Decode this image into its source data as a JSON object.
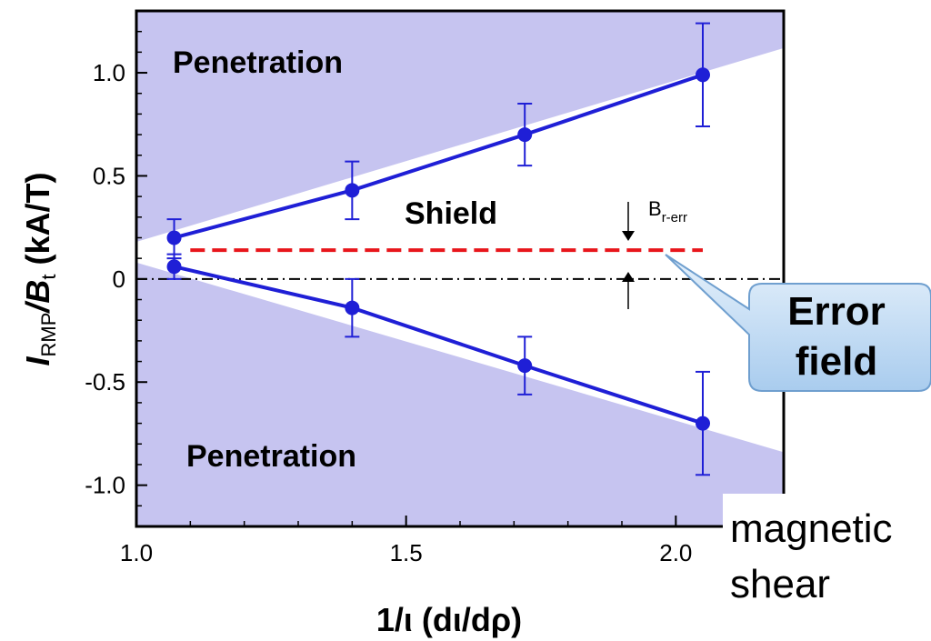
{
  "chart_data": {
    "type": "scatter",
    "xlabel": "1/ι (dι/dρ)",
    "ylabel_main": "I",
    "ylabel_sub": "RMP",
    "ylabel_mid": "/B",
    "ylabel_sub2": "t",
    "ylabel_unit": " (kA/T)",
    "xlim": [
      1.0,
      2.2
    ],
    "ylim": [
      -1.2,
      1.3
    ],
    "x_ticks": [
      {
        "value": 1.0,
        "label": "1.0"
      },
      {
        "value": 1.5,
        "label": "1.5"
      },
      {
        "value": 2.0,
        "label": "2.0"
      }
    ],
    "y_ticks": [
      {
        "value": 1.0,
        "label": "1.0"
      },
      {
        "value": 0.5,
        "label": "0.5"
      },
      {
        "value": 0.0,
        "label": "0"
      },
      {
        "value": -0.5,
        "label": "-0.5"
      },
      {
        "value": -1.0,
        "label": "-1.0"
      }
    ],
    "series": [
      {
        "color": "#1f1fd6",
        "x": [
          1.07,
          1.4,
          1.72,
          2.05
        ],
        "y": [
          0.2,
          0.43,
          0.7,
          0.99
        ],
        "err_low": [
          0.1,
          0.14,
          0.15,
          0.25
        ],
        "err_high": [
          0.09,
          0.14,
          0.15,
          0.25
        ]
      },
      {
        "color": "#1f1fd6",
        "x": [
          1.07,
          1.4,
          1.72,
          2.05
        ],
        "y": [
          0.06,
          -0.14,
          -0.42,
          -0.7
        ],
        "err_low": [
          0.06,
          0.14,
          0.14,
          0.25
        ],
        "err_high": [
          0.06,
          0.14,
          0.14,
          0.25
        ]
      }
    ],
    "error_field_line": {
      "y": 0.14,
      "x_start": 1.1,
      "x_end": 2.05,
      "color": "#e8151b"
    },
    "zero_line": {
      "y": 0.0,
      "style": "dash-dot",
      "color": "#000000"
    },
    "shade_color": "#c6c4f0",
    "shade_upper_edge": {
      "x": [
        1.0,
        2.2
      ],
      "y": [
        0.18,
        1.12
      ]
    },
    "shade_lower_edge": {
      "x": [
        1.0,
        2.2
      ],
      "y": [
        0.08,
        -0.84
      ]
    },
    "annotations": {
      "penetration_top": "Penetration",
      "penetration_bottom": "Penetration",
      "shield": "Shield",
      "berr_main": "B",
      "berr_sub": "r-err",
      "callout_line1": "Error",
      "callout_line2": "field",
      "side_line1": "magnetic",
      "side_line2": "shear"
    }
  }
}
